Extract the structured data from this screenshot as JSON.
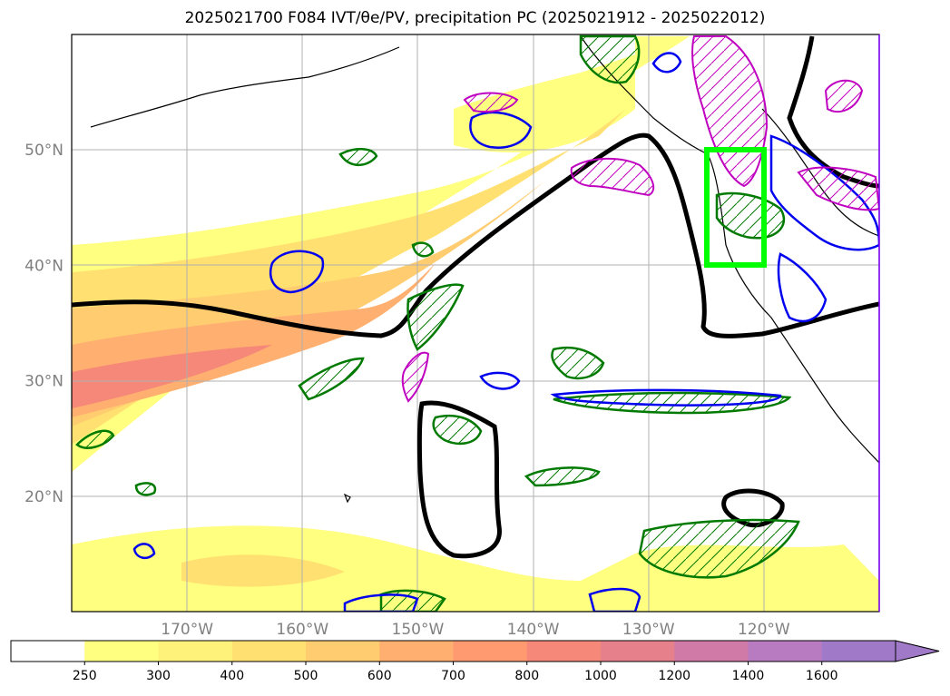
{
  "title": "2025021700 F084 IVT/θe/PV, precipitation PC (2025021912 - 2025022012)",
  "map": {
    "lon_range": [
      -180,
      -110
    ],
    "lat_range": [
      10,
      60
    ],
    "lon_ticks": [
      {
        "value": -170,
        "label": "170°W"
      },
      {
        "value": -160,
        "label": "160°W"
      },
      {
        "value": -150,
        "label": "150°W"
      },
      {
        "value": -140,
        "label": "140°W"
      },
      {
        "value": -130,
        "label": "130°W"
      },
      {
        "value": -120,
        "label": "120°W"
      }
    ],
    "lat_ticks": [
      {
        "value": 20,
        "label": "20°N"
      },
      {
        "value": 30,
        "label": "30°N"
      },
      {
        "value": 40,
        "label": "40°N"
      },
      {
        "value": 50,
        "label": "50°N"
      }
    ],
    "grid": true,
    "highlight_box": {
      "lon": [
        -125,
        -120
      ],
      "lat": [
        40,
        50
      ],
      "color": "#00ff00"
    }
  },
  "colorbar": {
    "levels": [
      "250",
      "300",
      "400",
      "500",
      "600",
      "700",
      "800",
      "1000",
      "1200",
      "1400",
      "1600"
    ],
    "colors": [
      "#ffff80",
      "#fff27a",
      "#ffe070",
      "#ffcc70",
      "#ffb070",
      "#ff9a70",
      "#f58878",
      "#e6808a",
      "#d07aa8",
      "#b87ac0",
      "#a07ac8"
    ],
    "extend": "max"
  },
  "colors": {
    "theta_e_contour": "#000000",
    "precip_green": "#007a00",
    "precip_blue": "#0000ee",
    "pv_magenta": "#c000c0",
    "grid": "#b0b0b0",
    "coast": "#000000"
  }
}
